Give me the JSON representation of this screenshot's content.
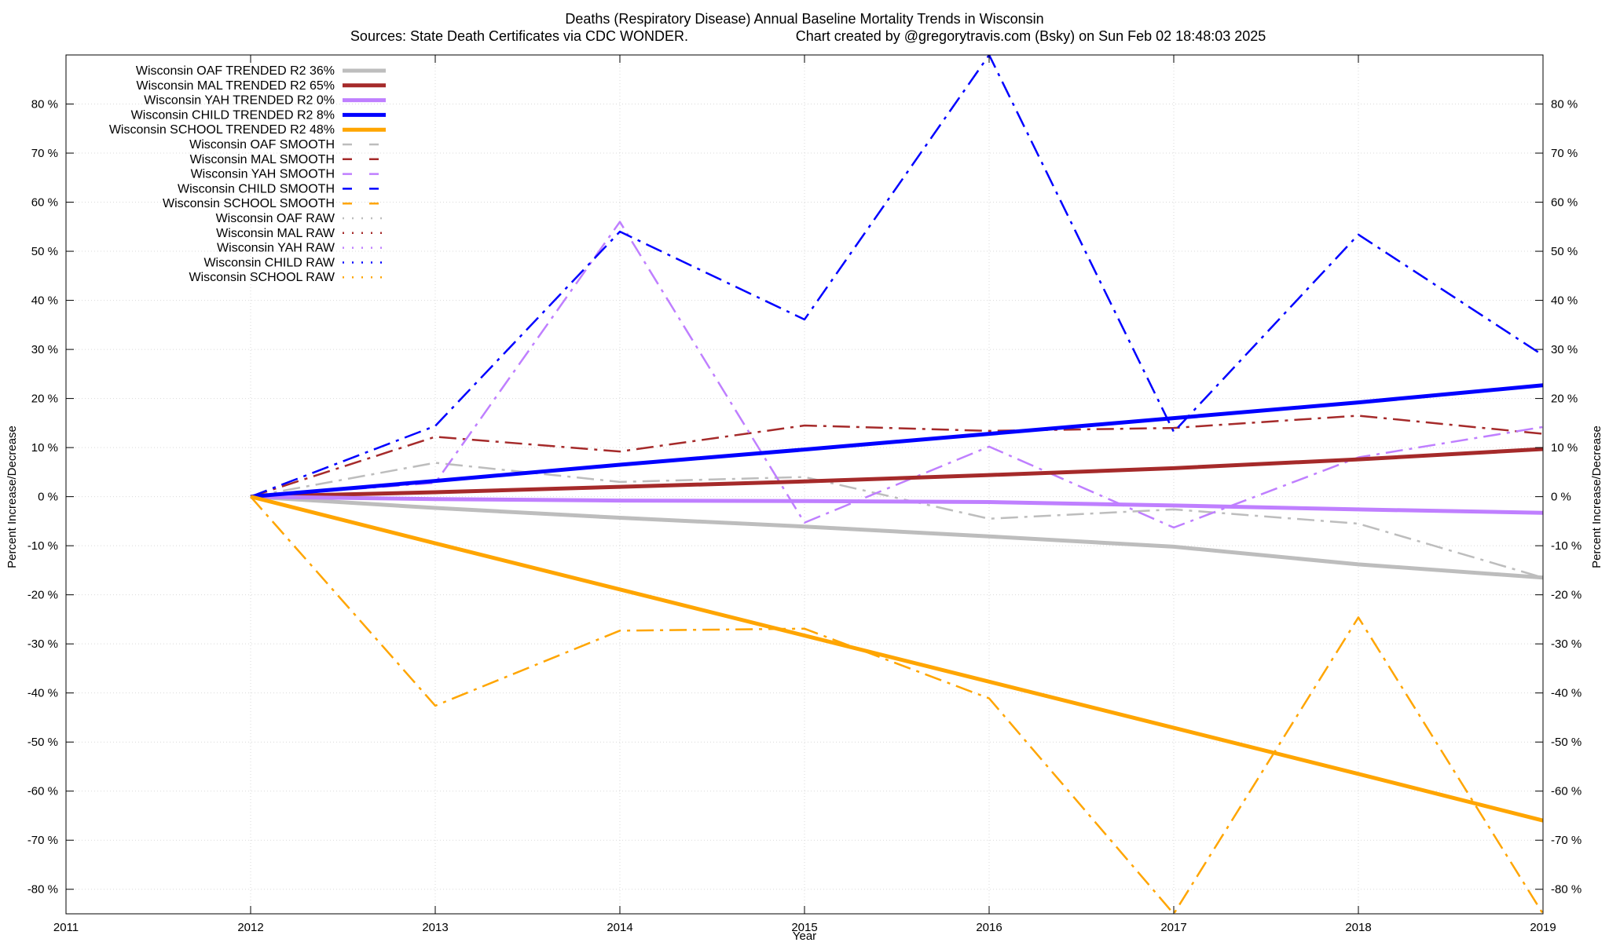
{
  "chart_data": {
    "type": "line",
    "title": "Deaths (Respiratory Disease)  Annual Baseline Mortality Trends in Wisconsin",
    "subtitle_left": "Sources: State Death Certificates via CDC WONDER.",
    "subtitle_right": "Chart created by @gregorytravis.com (Bsky) on Sun Feb 02 18:48:03 2025",
    "xlabel": "Year",
    "ylabel_left": "Percent Increase/Decrease",
    "ylabel_right": "Percent Increase/Decrease",
    "xlim": [
      2011,
      2019
    ],
    "ylim": [
      -85,
      90
    ],
    "x_ticks": [
      "2011",
      "2012",
      "2013",
      "2014",
      "2015",
      "2016",
      "2017",
      "2018",
      "2019"
    ],
    "y_ticks": [
      "-80 %",
      "-70 %",
      "-60 %",
      "-50 %",
      "-40 %",
      "-30 %",
      "-20 %",
      "-10 %",
      "0 %",
      "10 %",
      "20 %",
      "30 %",
      "40 %",
      "50 %",
      "60 %",
      "70 %",
      "80 %"
    ],
    "grid": true,
    "legend_position": "top-left",
    "series": [
      {
        "name": "Wisconsin OAF TRENDED R2  36%",
        "style": "trend",
        "color": "#bdbdbd",
        "x": [
          2012,
          2013,
          2014,
          2015,
          2016,
          2017,
          2018,
          2019
        ],
        "values": [
          0,
          -2.3,
          -4.3,
          -6.1,
          -8.1,
          -10.2,
          -13.8,
          -16.5
        ]
      },
      {
        "name": "Wisconsin MAL TRENDED R2  65%",
        "style": "trend",
        "color": "#a52a2a",
        "x": [
          2012,
          2013,
          2014,
          2015,
          2016,
          2017,
          2018,
          2019
        ],
        "values": [
          0,
          0.9,
          2.0,
          3.1,
          4.4,
          5.8,
          7.6,
          9.7
        ]
      },
      {
        "name": "Wisconsin YAH TRENDED R2  0%",
        "style": "trend",
        "color": "#bf7fff",
        "x": [
          2012,
          2013,
          2014,
          2015,
          2016,
          2017,
          2018,
          2019
        ],
        "values": [
          0,
          -0.5,
          -0.8,
          -0.9,
          -1.1,
          -1.8,
          -2.6,
          -3.3
        ]
      },
      {
        "name": "Wisconsin CHILD TRENDED R2  8%",
        "style": "trend",
        "color": "#0000ff",
        "x": [
          2012,
          2013,
          2014,
          2015,
          2016,
          2017,
          2018,
          2019
        ],
        "values": [
          0,
          3.2,
          6.5,
          9.6,
          12.8,
          16.0,
          19.2,
          22.7
        ]
      },
      {
        "name": "Wisconsin SCHOOL TRENDED R2  48%",
        "style": "trend",
        "color": "#ffa500",
        "x": [
          2012,
          2013,
          2014,
          2015,
          2016,
          2017,
          2018,
          2019
        ],
        "values": [
          0,
          -9.5,
          -18.9,
          -28.3,
          -37.7,
          -47.1,
          -56.5,
          -66.0
        ]
      },
      {
        "name": "Wisconsin OAF SMOOTH",
        "style": "smooth",
        "color": "#bdbdbd",
        "x": [
          2012,
          2013,
          2014,
          2015,
          2016,
          2017,
          2018,
          2019
        ],
        "values": [
          0,
          6.9,
          3.0,
          4.0,
          -4.5,
          -2.6,
          -5.5,
          -16.5
        ]
      },
      {
        "name": "Wisconsin MAL SMOOTH",
        "style": "smooth",
        "color": "#a52a2a",
        "x": [
          2012,
          2013,
          2014,
          2015,
          2016,
          2017,
          2018,
          2019
        ],
        "values": [
          0,
          12.2,
          9.2,
          14.5,
          13.4,
          14.0,
          16.5,
          12.8
        ]
      },
      {
        "name": "Wisconsin YAH SMOOTH",
        "style": "smooth",
        "color": "#bf7fff",
        "x": [
          2012,
          2013,
          2014,
          2015,
          2016,
          2017,
          2018,
          2019
        ],
        "values": [
          0,
          2.8,
          56.0,
          -5.3,
          10.2,
          -6.3,
          8.0,
          14.2
        ]
      },
      {
        "name": "Wisconsin CHILD SMOOTH",
        "style": "smooth",
        "color": "#0000ff",
        "x": [
          2012,
          2013,
          2014,
          2015,
          2016,
          2017,
          2018,
          2019
        ],
        "values": [
          0,
          14.4,
          54.0,
          36.1,
          90.0,
          13.2,
          53.4,
          28.8
        ]
      },
      {
        "name": "Wisconsin SCHOOL SMOOTH",
        "style": "smooth",
        "color": "#ffa500",
        "x": [
          2012,
          2013,
          2014,
          2015,
          2016,
          2017,
          2018,
          2019
        ],
        "values": [
          0,
          -42.6,
          -27.3,
          -26.9,
          -41.1,
          -85.0,
          -24.6,
          -85.0
        ]
      },
      {
        "name": "Wisconsin OAF RAW",
        "style": "raw",
        "color": "#bdbdbd",
        "x": [],
        "values": []
      },
      {
        "name": "Wisconsin MAL RAW",
        "style": "raw",
        "color": "#a52a2a",
        "x": [],
        "values": []
      },
      {
        "name": "Wisconsin YAH RAW",
        "style": "raw",
        "color": "#bf7fff",
        "x": [],
        "values": []
      },
      {
        "name": "Wisconsin CHILD RAW",
        "style": "raw",
        "color": "#0000ff",
        "x": [],
        "values": []
      },
      {
        "name": "Wisconsin SCHOOL RAW",
        "style": "raw",
        "color": "#ffa500",
        "x": [],
        "values": []
      }
    ]
  }
}
